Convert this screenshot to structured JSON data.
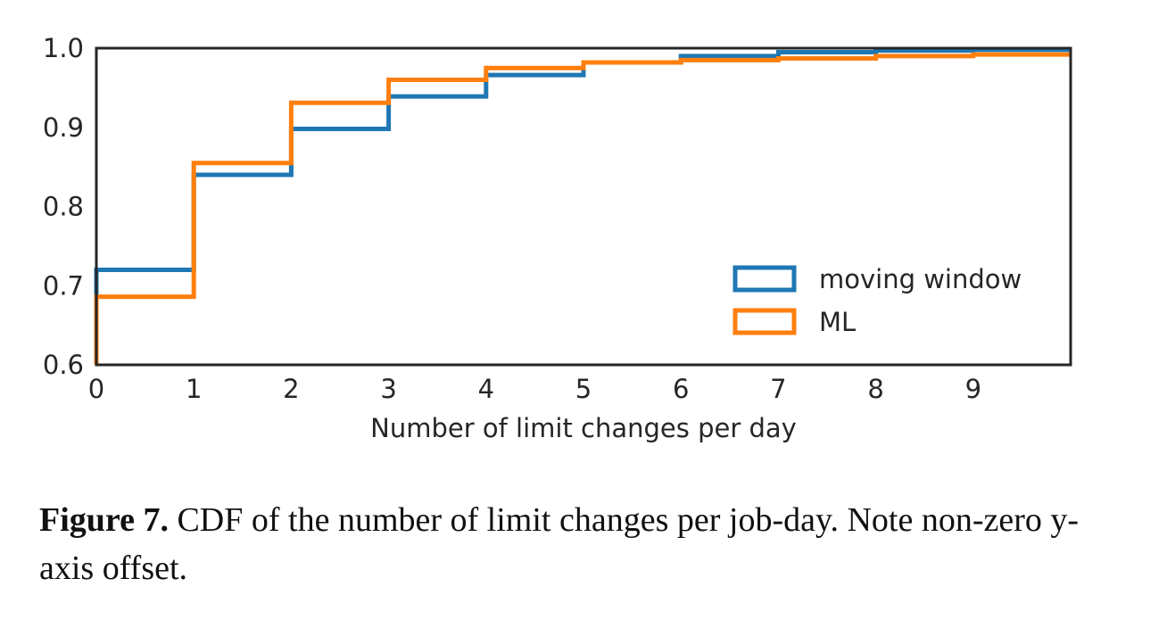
{
  "chart_data": {
    "type": "line",
    "step": true,
    "xlabel": "Number of limit changes per day",
    "ylabel": "",
    "xlim": [
      0,
      10
    ],
    "ylim": [
      0.6,
      1.0
    ],
    "xticks": [
      "0",
      "1",
      "2",
      "3",
      "4",
      "5",
      "6",
      "7",
      "8",
      "9"
    ],
    "yticks": [
      "0.6",
      "0.7",
      "0.8",
      "0.9",
      "1.0"
    ],
    "grid": false,
    "legend_position": "lower-right",
    "series": [
      {
        "name": "moving window",
        "color": "#1f77b4",
        "x": [
          0,
          1,
          2,
          3,
          4,
          5,
          6,
          7,
          8,
          9
        ],
        "y": [
          0.72,
          0.84,
          0.898,
          0.939,
          0.966,
          0.982,
          0.99,
          0.995,
          0.997,
          0.998
        ]
      },
      {
        "name": "ML",
        "color": "#ff7f0e",
        "x": [
          0,
          1,
          2,
          3,
          4,
          5,
          6,
          7,
          8,
          9
        ],
        "y": [
          0.686,
          0.855,
          0.931,
          0.96,
          0.975,
          0.982,
          0.985,
          0.987,
          0.99,
          0.992
        ]
      }
    ]
  },
  "caption": {
    "label": "Figure 7.",
    "text": " CDF of the number of limit changes per job-day. Note non-zero y-axis offset."
  }
}
